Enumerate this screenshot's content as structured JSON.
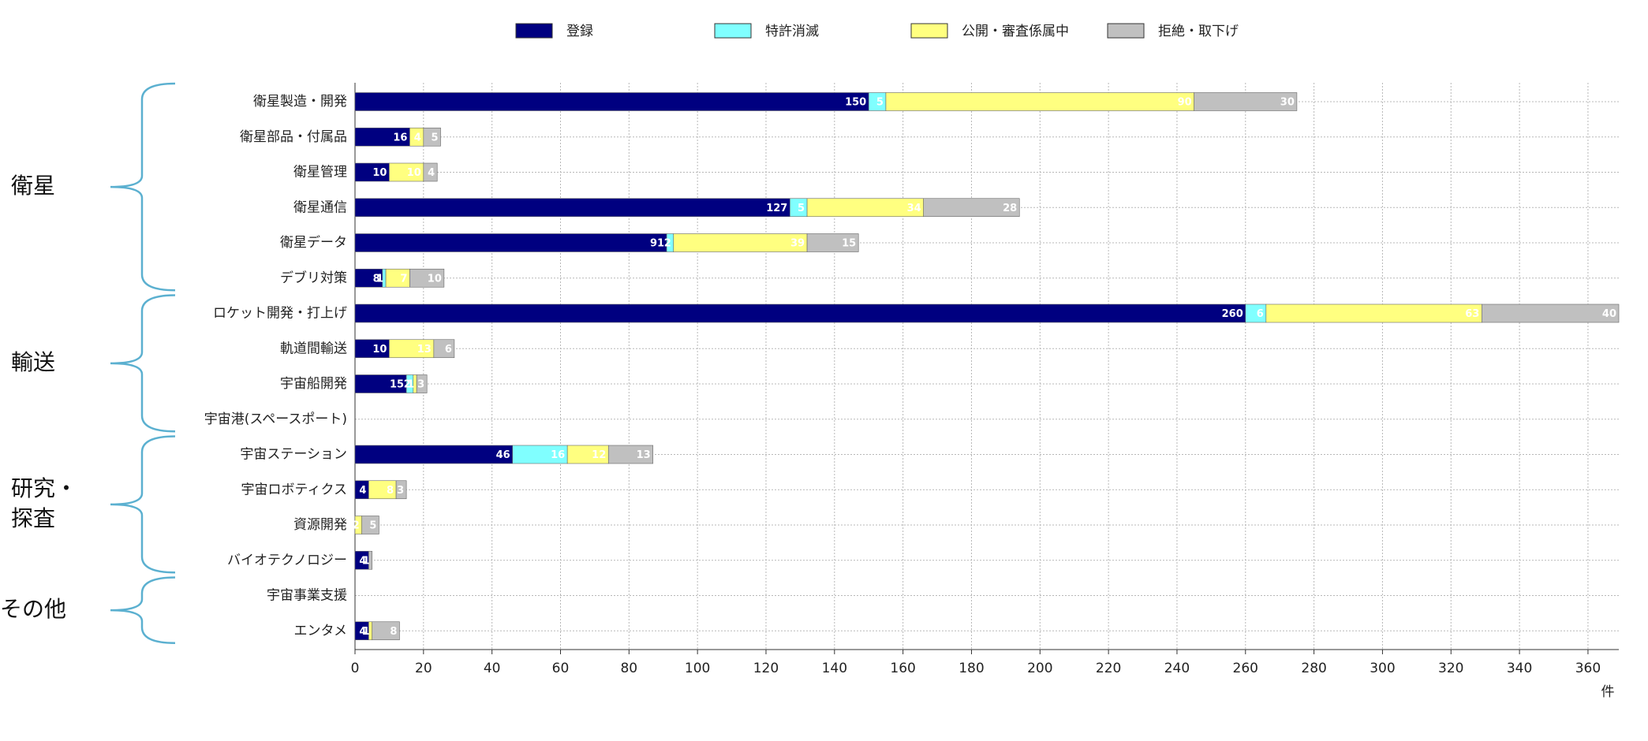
{
  "chart_data": {
    "type": "bar",
    "orientation": "horizontal",
    "stacked": true,
    "categories": [
      "衛星製造・開発",
      "衛星部品・付属品",
      "衛星管理",
      "衛星通信",
      "衛星データ",
      "デブリ対策",
      "ロケット開発・打上げ",
      "軌道間輸送",
      "宇宙船開発",
      "宇宙港(スペースポート)",
      "宇宙ステーション",
      "宇宙ロボティクス",
      "資源開発",
      "バイオテクノロジー",
      "宇宙事業支援",
      "エンタメ"
    ],
    "series": [
      {
        "name": "登録",
        "color": "#000080",
        "values": [
          150,
          16,
          10,
          127,
          91,
          8,
          260,
          10,
          15,
          0,
          46,
          4,
          0,
          4,
          0,
          4
        ]
      },
      {
        "name": "特許消滅",
        "color": "#80ffff",
        "values": [
          5,
          0,
          0,
          5,
          2,
          1,
          6,
          0,
          2,
          0,
          16,
          0,
          0,
          0,
          0,
          0
        ]
      },
      {
        "name": "公開・審査係属中",
        "color": "#ffff80",
        "values": [
          90,
          4,
          10,
          34,
          39,
          7,
          63,
          13,
          1,
          0,
          12,
          8,
          2,
          0,
          0,
          1
        ]
      },
      {
        "name": "拒絶・取下げ",
        "color": "#c0c0c0",
        "values": [
          30,
          5,
          4,
          28,
          15,
          10,
          40,
          6,
          3,
          0,
          13,
          3,
          5,
          1,
          0,
          8
        ]
      }
    ],
    "xlim": [
      0,
      369
    ],
    "xticks": [
      0,
      20,
      40,
      60,
      80,
      100,
      120,
      140,
      160,
      180,
      200,
      220,
      240,
      260,
      280,
      300,
      320,
      340,
      360
    ],
    "xlabel": "件",
    "grid": true,
    "legend": "top",
    "groups": [
      [
        "衛星"
      ],
      [
        "輸送"
      ],
      [
        "研究・",
        "探査"
      ],
      [
        "その他"
      ]
    ]
  }
}
